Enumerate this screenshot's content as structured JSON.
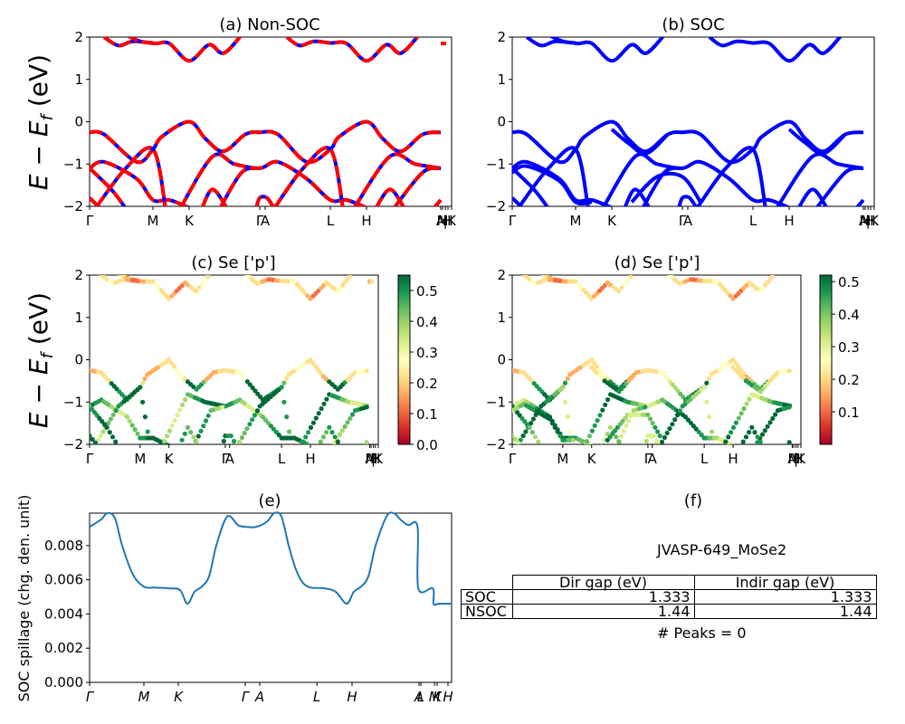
{
  "chart_data": [
    {
      "id": "a",
      "type": "line",
      "title": "(a) Non-SOC",
      "ylabel": "E − E_f (eV)",
      "ylim": [
        -2,
        2
      ],
      "yticks": [
        -2,
        -1,
        0,
        1,
        2
      ],
      "xticks": [
        "Γ",
        "M",
        "K",
        "Γ",
        "A",
        "L",
        "H",
        "A",
        "M",
        "|",
        "H",
        "K"
      ],
      "xtick_labels_rendered": [
        "Γ",
        "M",
        "K",
        "ΓA",
        "L",
        "H",
        "A̶M|HK"
      ],
      "line_style": "red/blue dashed overlay (spin up & down)",
      "colors": {
        "up": "#ff0000",
        "down": "#0000ff"
      },
      "bands_note": "valence max at K = 0 eV; conduction min at K ≈ 1.44 eV",
      "key_points": {
        "vbm_K": 0.0,
        "cbm_K": 1.44,
        "Gamma_top_valence": -0.25
      }
    },
    {
      "id": "b",
      "type": "line",
      "title": "(b) SOC",
      "ylim": [
        -2,
        2
      ],
      "yticks": [
        -2,
        -1,
        0,
        1,
        2
      ],
      "xticks": [
        "Γ",
        "M",
        "K",
        "Γ",
        "A",
        "L",
        "H",
        "A",
        "M",
        "|",
        "H",
        "K"
      ],
      "line_style": "solid blue",
      "colors": {
        "line": "#0000ff"
      },
      "key_points": {
        "vbm_K": 0.0,
        "cbm_K": 1.333
      }
    },
    {
      "id": "c",
      "type": "scatter",
      "title": "(c)  Se ['p']",
      "ylabel": "E − E_f (eV)",
      "ylim": [
        -2,
        2
      ],
      "yticks": [
        -2,
        -1,
        0,
        1,
        2
      ],
      "xticks": [
        "Γ",
        "M",
        "K",
        "Γ",
        "A",
        "L",
        "H",
        "A",
        "M",
        "|",
        "H",
        "K"
      ],
      "colorbar": {
        "cmap": "RdYlGn",
        "range": [
          0.0,
          0.55
        ],
        "ticks": [
          0.0,
          0.1,
          0.2,
          0.3,
          0.4,
          0.5
        ]
      }
    },
    {
      "id": "d",
      "type": "scatter",
      "title": "(d) Se ['p']",
      "ylim": [
        -2,
        2
      ],
      "yticks": [
        -2,
        -1,
        0,
        1,
        2
      ],
      "xticks": [
        "Γ",
        "M",
        "K",
        "Γ",
        "A",
        "L",
        "H",
        "A",
        "M",
        "|",
        "H",
        "K"
      ],
      "colorbar": {
        "cmap": "RdYlGn",
        "range": [
          0.0,
          0.52
        ],
        "ticks": [
          0.1,
          0.2,
          0.3,
          0.4,
          0.5
        ]
      }
    },
    {
      "id": "e",
      "type": "line",
      "title": "(e)",
      "ylabel": "SOC spillage (chg. den. unit)",
      "ylim": [
        0.0,
        0.0099
      ],
      "yticks": [
        "0.000",
        "0.002",
        "0.004",
        "0.006",
        "0.008"
      ],
      "xticks": [
        "Γ",
        "M",
        "K",
        "Γ",
        "A",
        "L",
        "H",
        "A",
        "L",
        "M",
        "K",
        "H"
      ],
      "color": "#1f77b4",
      "x": [
        0,
        0.03,
        0.05,
        0.07,
        0.09,
        0.12,
        0.15,
        0.18,
        0.22,
        0.25,
        0.27,
        0.29,
        0.31,
        0.33,
        0.35,
        0.38,
        0.41,
        0.43,
        0.46,
        0.49,
        0.51,
        0.53,
        0.55,
        0.57,
        0.59,
        0.61,
        0.63,
        0.65,
        0.68,
        0.71,
        0.73,
        0.75,
        0.77,
        0.79,
        0.82,
        0.84,
        0.86,
        0.88,
        0.906,
        0.908,
        0.948,
        0.95,
        0.962,
        0.964,
        1.0
      ],
      "y": [
        0.0091,
        0.0095,
        0.0099,
        0.0096,
        0.008,
        0.0063,
        0.0056,
        0.00555,
        0.0055,
        0.0054,
        0.0046,
        0.0053,
        0.0056,
        0.0062,
        0.008,
        0.0097,
        0.0092,
        0.0091,
        0.0091,
        0.0094,
        0.0099,
        0.0097,
        0.008,
        0.0066,
        0.0058,
        0.00555,
        0.00552,
        0.0055,
        0.0053,
        0.0046,
        0.0053,
        0.0056,
        0.0062,
        0.008,
        0.0097,
        0.0099,
        0.0095,
        0.0092,
        0.0091,
        0.0055,
        0.0055,
        0.0046,
        0.0046,
        0.0046,
        0.0046
      ]
    }
  ],
  "panel_f": {
    "title": "(f)",
    "material": "JVASP-649_MoSe2",
    "table": {
      "columns": [
        "Dir gap (eV)",
        "Indir gap (eV)"
      ],
      "rows": [
        {
          "label": "SOC",
          "values": [
            "1.333",
            "1.333"
          ]
        },
        {
          "label": "NSOC",
          "values": [
            "1.44",
            "1.44"
          ]
        }
      ]
    },
    "peaks": "# Peaks = 0"
  }
}
